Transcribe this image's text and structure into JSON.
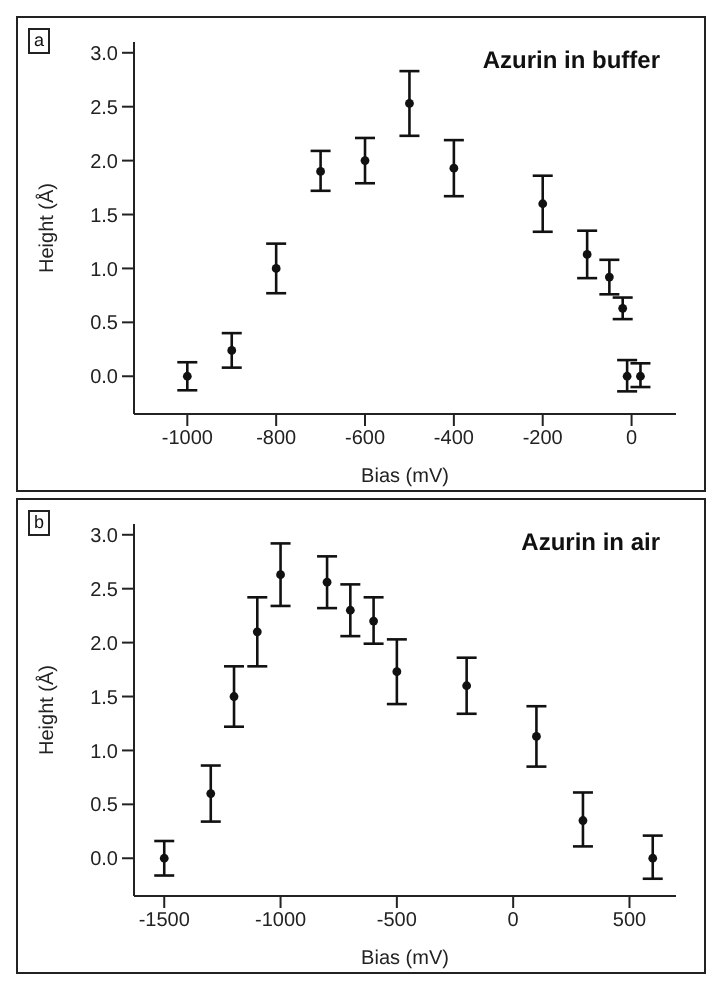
{
  "chart_data": [
    {
      "type": "scatter",
      "title": "Azurin in buffer",
      "xlabel": "Bias (mV)",
      "ylabel": "Height (Å)",
      "annotations": [
        "a"
      ],
      "marker": "circle",
      "color": "#111111",
      "x": [
        -1000,
        -900,
        -800,
        -700,
        -600,
        -500,
        -400,
        -200,
        -100,
        -50,
        -20,
        -10,
        20
      ],
      "values": [
        0,
        0.24,
        1.0,
        1.9,
        2.0,
        2.53,
        1.93,
        1.6,
        1.13,
        0.92,
        0.63,
        0,
        0
      ],
      "errors": [
        [
          -0.13,
          0.13
        ],
        [
          0.08,
          0.4
        ],
        [
          0.77,
          1.23
        ],
        [
          1.72,
          2.09
        ],
        [
          1.79,
          2.21
        ],
        [
          2.23,
          2.83
        ],
        [
          1.67,
          2.19
        ],
        [
          1.34,
          1.86
        ],
        [
          0.91,
          1.35
        ],
        [
          0.76,
          1.08
        ],
        [
          0.53,
          0.73
        ],
        [
          -0.14,
          0.15
        ],
        [
          -0.1,
          0.12
        ]
      ],
      "xlim": [
        -1120,
        100
      ],
      "ylim": [
        -0.35,
        3.1
      ],
      "xticks": [
        -1000,
        -800,
        -600,
        -400,
        -200,
        0
      ],
      "yticks": [
        {
          "value": 0,
          "label": "0.0"
        },
        {
          "value": 0.5,
          "label": "0.5"
        },
        {
          "value": 1,
          "label": "1.0"
        },
        {
          "value": 1.5,
          "label": "1.5"
        },
        {
          "value": 2,
          "label": "2.0"
        },
        {
          "value": 2.5,
          "label": "2.5"
        },
        {
          "value": 3,
          "label": "3.0"
        }
      ]
    },
    {
      "type": "scatter",
      "title": "Azurin in air",
      "xlabel": "Bias (mV)",
      "ylabel": "Height (Å)",
      "annotations": [
        "b"
      ],
      "marker": "circle",
      "color": "#111111",
      "x": [
        -1500,
        -1300,
        -1200,
        -1100,
        -1000,
        -800,
        -700,
        -600,
        -500,
        -200,
        100,
        300,
        600
      ],
      "values": [
        0,
        0.6,
        1.5,
        2.1,
        2.63,
        2.56,
        2.3,
        2.2,
        1.73,
        1.6,
        1.13,
        0.35,
        0
      ],
      "errors": [
        [
          -0.16,
          0.16
        ],
        [
          0.34,
          0.86
        ],
        [
          1.22,
          1.78
        ],
        [
          1.78,
          2.42
        ],
        [
          2.34,
          2.92
        ],
        [
          2.32,
          2.8
        ],
        [
          2.06,
          2.54
        ],
        [
          1.99,
          2.42
        ],
        [
          1.43,
          2.03
        ],
        [
          1.34,
          1.86
        ],
        [
          0.85,
          1.41
        ],
        [
          0.11,
          0.61
        ],
        [
          -0.19,
          0.21
        ]
      ],
      "xlim": [
        -1630,
        700
      ],
      "ylim": [
        -0.35,
        3.1
      ],
      "xticks": [
        -1500,
        -1000,
        -500,
        0,
        500
      ],
      "yticks": [
        {
          "value": 0,
          "label": "0.0"
        },
        {
          "value": 0.5,
          "label": "0.5"
        },
        {
          "value": 1,
          "label": "1.0"
        },
        {
          "value": 1.5,
          "label": "1.5"
        },
        {
          "value": 2,
          "label": "2.0"
        },
        {
          "value": 2.5,
          "label": "2.5"
        },
        {
          "value": 3,
          "label": "3.0"
        }
      ]
    }
  ]
}
